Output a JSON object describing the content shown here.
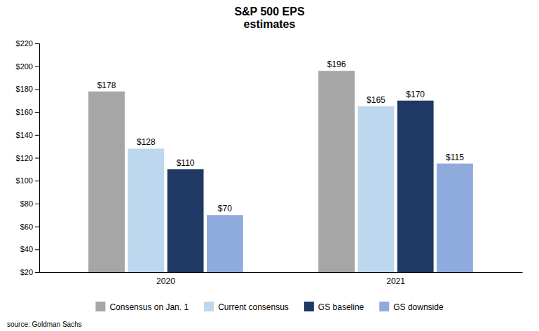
{
  "chart_data": {
    "type": "bar",
    "title": "S&P 500 EPS\nestimates",
    "categories": [
      "2020",
      "2021"
    ],
    "series": [
      {
        "name": "Consensus on Jan. 1",
        "color": "#a6a6a6",
        "values": [
          178,
          196
        ],
        "value_labels": [
          "$178",
          "$196"
        ]
      },
      {
        "name": "Current consensus",
        "color": "#bdd7ee",
        "values": [
          128,
          165
        ],
        "value_labels": [
          "$128",
          "$165"
        ]
      },
      {
        "name": "GS baseline",
        "color": "#1f3864",
        "values": [
          110,
          170
        ],
        "value_labels": [
          "$110",
          "$170"
        ]
      },
      {
        "name": "GS downside",
        "color": "#8faadc",
        "values": [
          70,
          115
        ],
        "value_labels": [
          "$70",
          "$115"
        ]
      }
    ],
    "ylim": [
      20,
      220
    ],
    "yticks": [
      {
        "value": 20,
        "label": "$20"
      },
      {
        "value": 40,
        "label": "$40"
      },
      {
        "value": 60,
        "label": "$60"
      },
      {
        "value": 80,
        "label": "$80"
      },
      {
        "value": 100,
        "label": "$100"
      },
      {
        "value": 120,
        "label": "$120"
      },
      {
        "value": 140,
        "label": "$140"
      },
      {
        "value": 160,
        "label": "$160"
      },
      {
        "value": 180,
        "label": "$180"
      },
      {
        "value": 200,
        "label": "$200"
      },
      {
        "value": 220,
        "label": "$220"
      }
    ],
    "data_labels": true,
    "grid": false,
    "legend": "bottom",
    "annotations": [
      "source: Goldman Sachs"
    ]
  }
}
